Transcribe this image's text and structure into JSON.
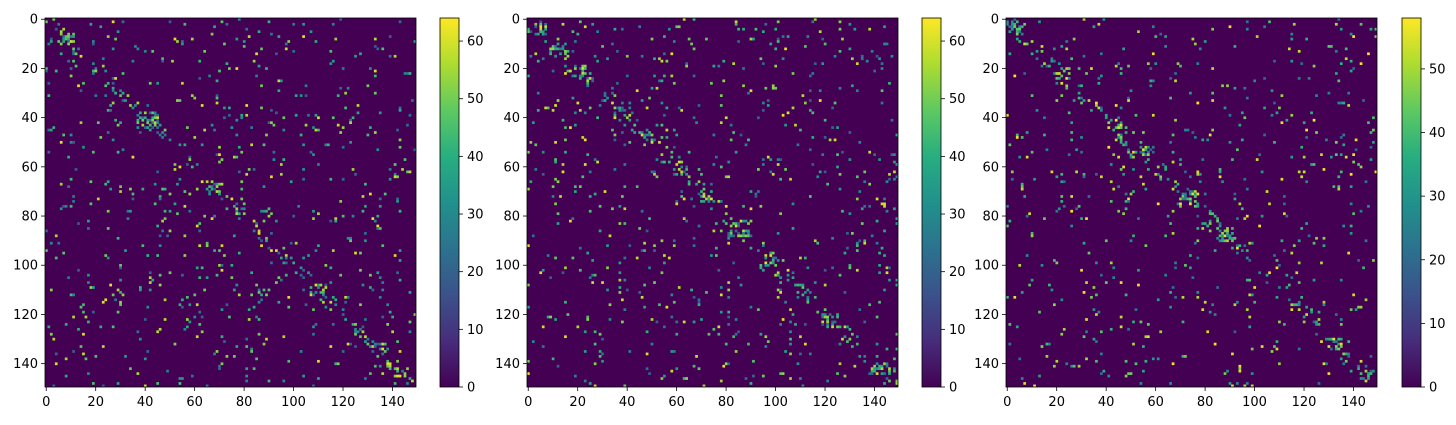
{
  "chart_data": [
    {
      "type": "heatmap",
      "title": "",
      "xlabel": "",
      "ylabel": "",
      "matrix_size": [
        150,
        150
      ],
      "xticks": [
        0,
        20,
        40,
        60,
        80,
        100,
        120,
        140
      ],
      "yticks": [
        0,
        20,
        40,
        60,
        80,
        100,
        120,
        140
      ],
      "xlim": [
        0,
        150
      ],
      "ylim": [
        150,
        0
      ],
      "colormap": "viridis",
      "colorbar": {
        "min": 0,
        "max": 64,
        "ticks": [
          0,
          10,
          20,
          30,
          40,
          50,
          60
        ]
      },
      "structure": "sparse random off-diagonal entries with a dense band along the main diagonal; most cells 0",
      "diagonal_band_halfwidth": 3,
      "diagonal_clusters": [
        [
          6,
          10
        ],
        [
          12,
          14
        ],
        [
          28,
          30
        ],
        [
          38,
          44
        ],
        [
          47,
          48
        ],
        [
          66,
          70
        ],
        [
          77,
          79
        ],
        [
          108,
          112
        ],
        [
          132,
          136
        ],
        [
          142,
          145
        ]
      ],
      "offdiag_density": 0.03,
      "grid": false,
      "legend": "none",
      "seed": 11
    },
    {
      "type": "heatmap",
      "title": "",
      "xlabel": "",
      "ylabel": "",
      "matrix_size": [
        150,
        150
      ],
      "xticks": [
        0,
        20,
        40,
        60,
        80,
        100,
        120,
        140
      ],
      "yticks": [
        0,
        20,
        40,
        60,
        80,
        100,
        120,
        140
      ],
      "xlim": [
        0,
        150
      ],
      "ylim": [
        150,
        0
      ],
      "colormap": "viridis",
      "colorbar": {
        "min": 0,
        "max": 64,
        "ticks": [
          0,
          10,
          20,
          30,
          40,
          50,
          60
        ]
      },
      "structure": "sparse random off-diagonal entries with a dense band along the main diagonal; most cells 0",
      "diagonal_band_halfwidth": 4,
      "diagonal_clusters": [
        [
          2,
          6
        ],
        [
          10,
          14
        ],
        [
          22,
          25
        ],
        [
          36,
          40
        ],
        [
          46,
          50
        ],
        [
          60,
          63
        ],
        [
          70,
          74
        ],
        [
          82,
          88
        ],
        [
          96,
          100
        ],
        [
          120,
          124
        ],
        [
          140,
          145
        ]
      ],
      "offdiag_density": 0.032,
      "grid": false,
      "legend": "none",
      "seed": 23
    },
    {
      "type": "heatmap",
      "title": "",
      "xlabel": "",
      "ylabel": "",
      "matrix_size": [
        150,
        150
      ],
      "xticks": [
        0,
        20,
        40,
        60,
        80,
        100,
        120,
        140
      ],
      "yticks": [
        0,
        20,
        40,
        60,
        80,
        100,
        120,
        140
      ],
      "xlim": [
        0,
        150
      ],
      "ylim": [
        150,
        0
      ],
      "colormap": "viridis",
      "colorbar": {
        "min": 0,
        "max": 58,
        "ticks": [
          0,
          10,
          20,
          30,
          40,
          50
        ]
      },
      "structure": "sparse random off-diagonal entries with a dense band along the main diagonal; most cells 0",
      "diagonal_band_halfwidth": 4,
      "diagonal_clusters": [
        [
          2,
          6
        ],
        [
          20,
          24
        ],
        [
          40,
          44
        ],
        [
          52,
          56
        ],
        [
          70,
          76
        ],
        [
          86,
          90
        ],
        [
          130,
          134
        ],
        [
          143,
          147
        ]
      ],
      "offdiag_density": 0.026,
      "grid": false,
      "legend": "none",
      "seed": 37
    }
  ]
}
